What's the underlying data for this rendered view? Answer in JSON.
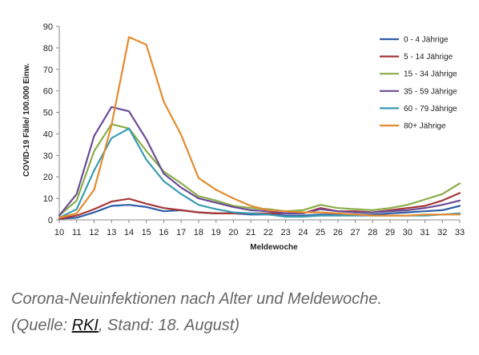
{
  "chart_data": {
    "type": "line",
    "title": "",
    "xlabel": "Meldewoche",
    "ylabel": "COVID-19 Fälle/ 100.000 Einw.",
    "x": [
      10,
      11,
      12,
      13,
      14,
      15,
      16,
      17,
      18,
      19,
      20,
      21,
      22,
      23,
      24,
      25,
      26,
      27,
      28,
      29,
      30,
      31,
      32,
      33
    ],
    "ylim": [
      0,
      90
    ],
    "yticks": [
      0,
      10,
      20,
      30,
      40,
      50,
      60,
      70,
      80,
      90
    ],
    "grid": false,
    "legend_position": "top-right",
    "series": [
      {
        "name": "0 - 4 Jährige",
        "color": "#2e5ea5",
        "values": [
          0.5,
          1,
          3.5,
          6.5,
          7,
          6,
          4,
          4.5,
          3.5,
          3,
          3,
          2.5,
          2.5,
          2,
          2,
          2.5,
          2.5,
          2.5,
          2.5,
          3,
          3.5,
          4,
          4.5,
          6.5
        ]
      },
      {
        "name": "5 - 14 Jährige",
        "color": "#a63737",
        "values": [
          0.5,
          2,
          5,
          8.5,
          9.8,
          7.5,
          5.5,
          4.5,
          3.5,
          3,
          3,
          3,
          3,
          3,
          3,
          5.5,
          4,
          4,
          3.5,
          4.5,
          5.5,
          6.5,
          9,
          12.5
        ]
      },
      {
        "name": "15 - 34 Jährige",
        "color": "#8aad48",
        "values": [
          2,
          9,
          32,
          44.5,
          42.5,
          32,
          22.5,
          17,
          11,
          9,
          6.5,
          5.5,
          5,
          4,
          4.5,
          7,
          5.5,
          5,
          4.5,
          5.5,
          7,
          9.5,
          12,
          17
        ]
      },
      {
        "name": "35 - 59 Jährige",
        "color": "#6c4b96",
        "values": [
          2,
          12,
          39,
          52.5,
          50.5,
          37.5,
          21.5,
          15,
          10,
          8,
          6,
          4.5,
          4,
          3,
          3,
          5,
          4,
          3.5,
          3.5,
          4,
          4.5,
          5.5,
          7,
          9
        ]
      },
      {
        "name": "60 - 79 Jährige",
        "color": "#3a9cb2",
        "values": [
          1,
          5,
          23,
          38,
          42.5,
          28,
          18,
          12,
          7,
          5,
          3.5,
          3,
          2.5,
          1.5,
          1.5,
          2,
          2,
          2,
          2,
          2,
          2,
          2,
          2.5,
          3
        ]
      },
      {
        "name": "80+ Jährige",
        "color": "#e48b2e",
        "values": [
          1,
          3,
          14,
          44,
          85,
          81.5,
          55,
          39.5,
          19.5,
          14,
          10,
          6.5,
          4.5,
          4,
          3.5,
          3.5,
          3,
          2.5,
          2,
          2,
          2,
          2.5,
          2.5,
          2.5
        ]
      }
    ]
  },
  "caption": {
    "line1": "Corona-Neuinfektionen nach Alter und Meldewoche.",
    "line2_prefix": "(Quelle: ",
    "source_link": "RKI",
    "line2_suffix": ", Stand: 18. August)"
  }
}
